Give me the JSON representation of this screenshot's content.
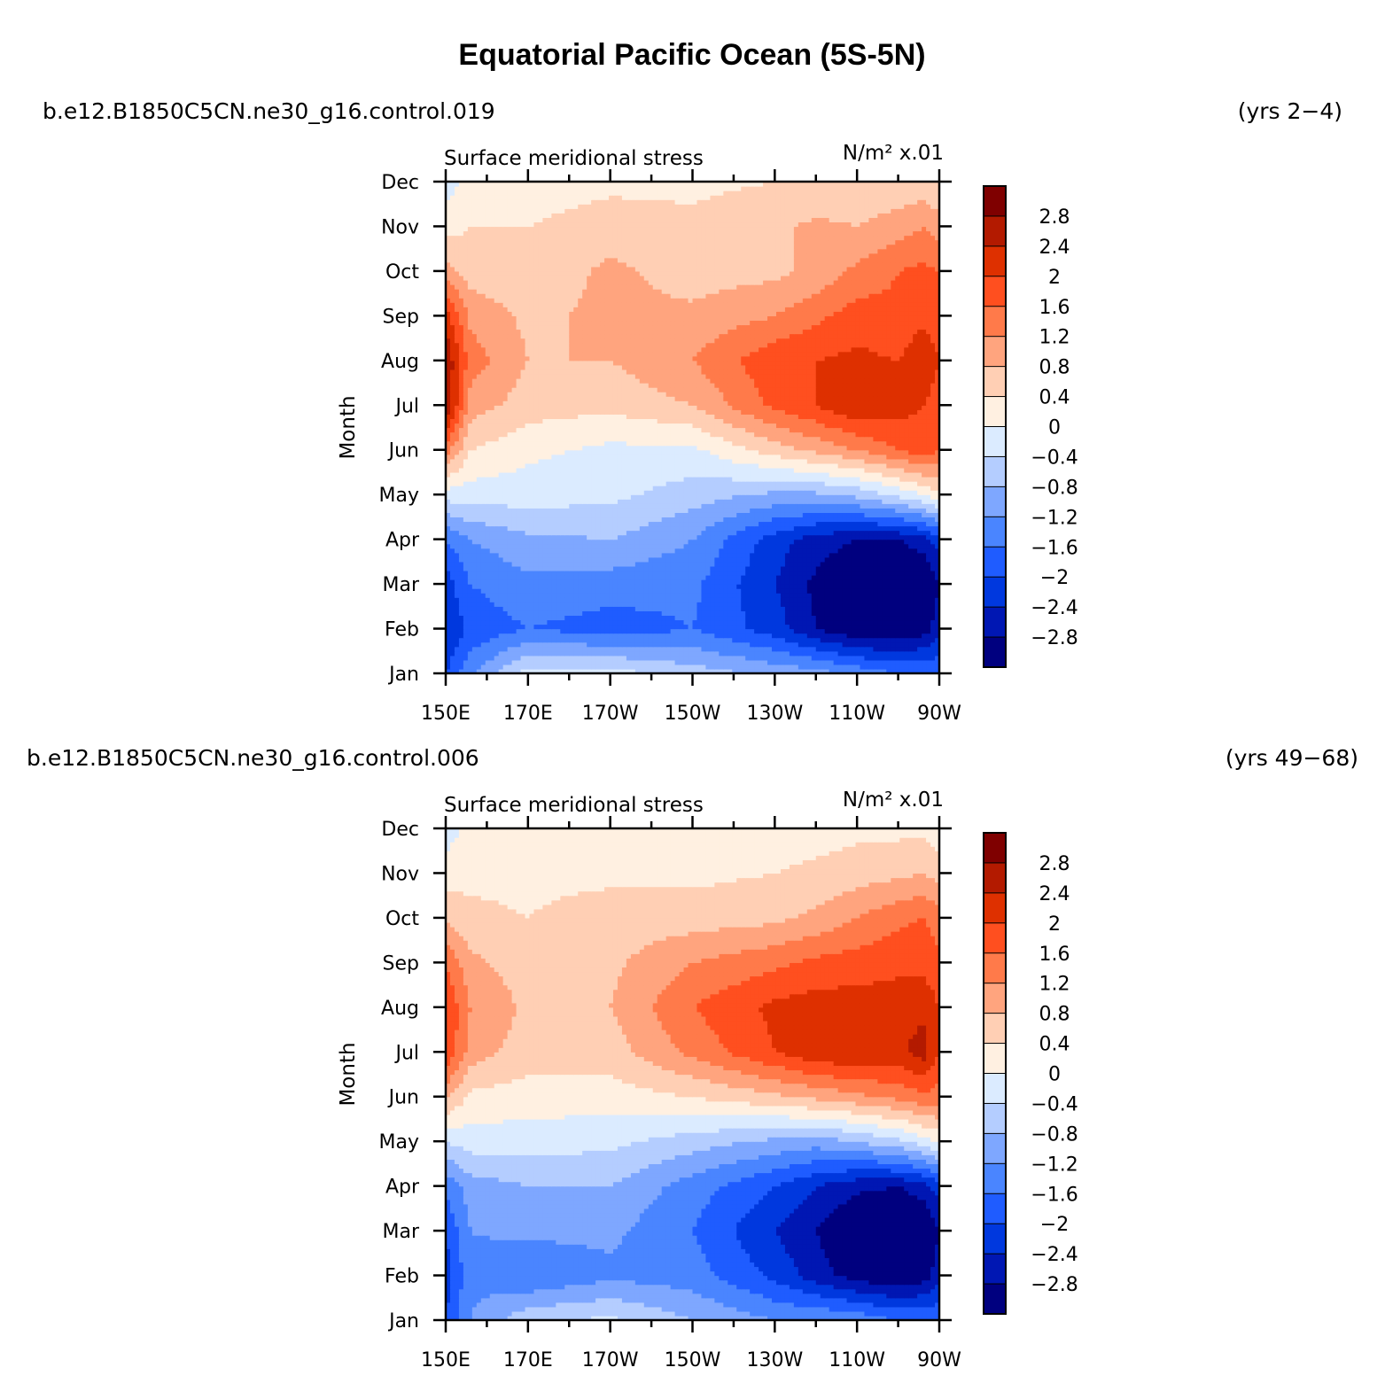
{
  "title": "Equatorial Pacific Ocean (5S-5N)",
  "chart_data": [
    {
      "type": "heatmap",
      "case_name": "b.e12.B1850C5CN.ne30_g16.control.019",
      "years": "(yrs 2−4)",
      "variable": "Surface meridional stress",
      "units": "N/m² x.01",
      "ylabel": "Month",
      "x_ticks": [
        "150E",
        "170E",
        "170W",
        "150W",
        "130W",
        "110W",
        "90W"
      ],
      "y_ticks": [
        "Jan",
        "Feb",
        "Mar",
        "Apr",
        "May",
        "Jun",
        "Jul",
        "Aug",
        "Sep",
        "Oct",
        "Nov",
        "Dec"
      ],
      "x_range_deg_east": [
        150,
        270
      ],
      "colorbar_levels": [
        "2.8",
        "2.4",
        "2",
        "1.6",
        "1.2",
        "0.8",
        "0.4",
        "0",
        "−0.4",
        "−0.8",
        "−1.2",
        "−1.6",
        "−2",
        "−2.4",
        "−2.8"
      ],
      "lon_deg_east": [
        150,
        156,
        170,
        190,
        210,
        230,
        240,
        250,
        260,
        266,
        270
      ],
      "months": [
        "Jan",
        "Feb",
        "Mar",
        "Apr",
        "May",
        "Jun",
        "Jul",
        "Aug",
        "Sep",
        "Oct",
        "Nov",
        "Dec"
      ],
      "values": [
        [
          -2.0,
          -1.3,
          -0.2,
          -0.2,
          -0.6,
          -0.9,
          -1.0,
          -1.3,
          -1.6,
          -1.6,
          -1.6
        ],
        [
          -2.4,
          -1.9,
          -1.6,
          -1.8,
          -1.6,
          -2.2,
          -2.8,
          -3.2,
          -3.2,
          -3.0,
          -2.6
        ],
        [
          -2.2,
          -1.6,
          -1.3,
          -1.4,
          -1.5,
          -2.4,
          -2.9,
          -3.3,
          -3.4,
          -3.3,
          -2.8
        ],
        [
          -1.6,
          -1.2,
          -0.9,
          -0.8,
          -1.2,
          -2.2,
          -2.6,
          -2.8,
          -2.8,
          -2.6,
          -2.2
        ],
        [
          -0.2,
          -0.2,
          -0.2,
          -0.3,
          -0.6,
          -0.9,
          -0.9,
          -0.7,
          -0.3,
          0.0,
          0.3
        ],
        [
          1.4,
          0.4,
          0.1,
          -0.1,
          -0.1,
          0.6,
          0.9,
          1.2,
          1.6,
          1.8,
          1.6
        ],
        [
          2.8,
          1.0,
          0.6,
          0.5,
          0.8,
          1.7,
          2.0,
          2.4,
          2.2,
          2.0,
          1.8
        ],
        [
          2.8,
          1.4,
          0.8,
          0.8,
          1.2,
          1.9,
          2.0,
          2.1,
          2.0,
          2.3,
          2.0
        ],
        [
          2.2,
          1.1,
          0.7,
          0.9,
          0.9,
          1.2,
          1.5,
          1.8,
          1.7,
          1.9,
          1.8
        ],
        [
          1.0,
          0.6,
          0.5,
          0.9,
          0.6,
          0.7,
          0.9,
          1.3,
          1.6,
          1.7,
          1.6
        ],
        [
          0.2,
          0.4,
          0.4,
          0.6,
          0.5,
          0.7,
          0.9,
          0.8,
          1.0,
          1.2,
          1.0
        ],
        [
          -0.2,
          0.2,
          0.2,
          0.3,
          0.3,
          0.4,
          0.4,
          0.5,
          0.5,
          0.5,
          0.4
        ]
      ]
    },
    {
      "type": "heatmap",
      "case_name": "b.e12.B1850C5CN.ne30_g16.control.006",
      "years": "(yrs 49−68)",
      "variable": "Surface meridional stress",
      "units": "N/m² x.01",
      "ylabel": "Month",
      "x_ticks": [
        "150E",
        "170E",
        "170W",
        "150W",
        "130W",
        "110W",
        "90W"
      ],
      "y_ticks": [
        "Jan",
        "Feb",
        "Mar",
        "Apr",
        "May",
        "Jun",
        "Jul",
        "Aug",
        "Sep",
        "Oct",
        "Nov",
        "Dec"
      ],
      "x_range_deg_east": [
        150,
        270
      ],
      "colorbar_levels": [
        "2.8",
        "2.4",
        "2",
        "1.6",
        "1.2",
        "0.8",
        "0.4",
        "0",
        "−0.4",
        "−0.8",
        "−1.2",
        "−1.6",
        "−2",
        "−2.4",
        "−2.8"
      ],
      "lon_deg_east": [
        150,
        156,
        170,
        190,
        210,
        230,
        240,
        250,
        260,
        266,
        270
      ],
      "months": [
        "Jan",
        "Feb",
        "Mar",
        "Apr",
        "May",
        "Jun",
        "Jul",
        "Aug",
        "Sep",
        "Oct",
        "Nov",
        "Dec"
      ],
      "values": [
        [
          -2.0,
          -1.2,
          -0.5,
          -0.3,
          -0.8,
          -1.2,
          -1.2,
          -1.3,
          -1.6,
          -1.6,
          -1.6
        ],
        [
          -2.2,
          -1.3,
          -1.6,
          -1.3,
          -1.4,
          -2.1,
          -2.6,
          -3.0,
          -3.2,
          -3.0,
          -2.6
        ],
        [
          -2.0,
          -1.2,
          -1.1,
          -1.1,
          -1.6,
          -2.4,
          -2.8,
          -3.3,
          -3.4,
          -3.3,
          -2.8
        ],
        [
          -1.5,
          -1.0,
          -0.8,
          -0.8,
          -1.4,
          -2.0,
          -2.4,
          -2.7,
          -2.8,
          -2.6,
          -2.2
        ],
        [
          -0.4,
          -0.2,
          -0.2,
          -0.3,
          -0.6,
          -0.9,
          -1.0,
          -0.8,
          -0.5,
          -0.2,
          0.1
        ],
        [
          0.9,
          0.3,
          0.2,
          0.2,
          0.4,
          0.7,
          0.9,
          1.1,
          1.3,
          1.5,
          1.4
        ],
        [
          2.0,
          1.0,
          0.6,
          0.6,
          1.3,
          2.0,
          2.3,
          2.4,
          2.3,
          2.6,
          2.0
        ],
        [
          2.0,
          1.2,
          0.7,
          0.8,
          1.6,
          2.1,
          2.2,
          2.2,
          2.2,
          2.3,
          2.0
        ],
        [
          1.6,
          0.9,
          0.6,
          0.7,
          1.2,
          1.5,
          1.7,
          1.8,
          1.9,
          1.9,
          1.7
        ],
        [
          0.7,
          0.5,
          0.4,
          0.6,
          0.6,
          0.7,
          0.9,
          1.2,
          1.5,
          1.6,
          1.4
        ],
        [
          0.2,
          0.3,
          0.3,
          0.3,
          0.3,
          0.4,
          0.5,
          0.6,
          0.7,
          0.8,
          0.6
        ],
        [
          -0.2,
          0.1,
          0.1,
          0.1,
          0.1,
          0.2,
          0.2,
          0.3,
          0.3,
          0.3,
          0.2
        ]
      ]
    }
  ],
  "colors": {
    "palette": [
      "#00007f",
      "#0017b3",
      "#0038de",
      "#1f5cff",
      "#4a85ff",
      "#7ea7ff",
      "#b4cdff",
      "#dbebff",
      "#fff0e1",
      "#ffcfb4",
      "#ffa47e",
      "#ff7a4a",
      "#ff4f1f",
      "#de3000",
      "#b31a00",
      "#7f0000"
    ]
  }
}
